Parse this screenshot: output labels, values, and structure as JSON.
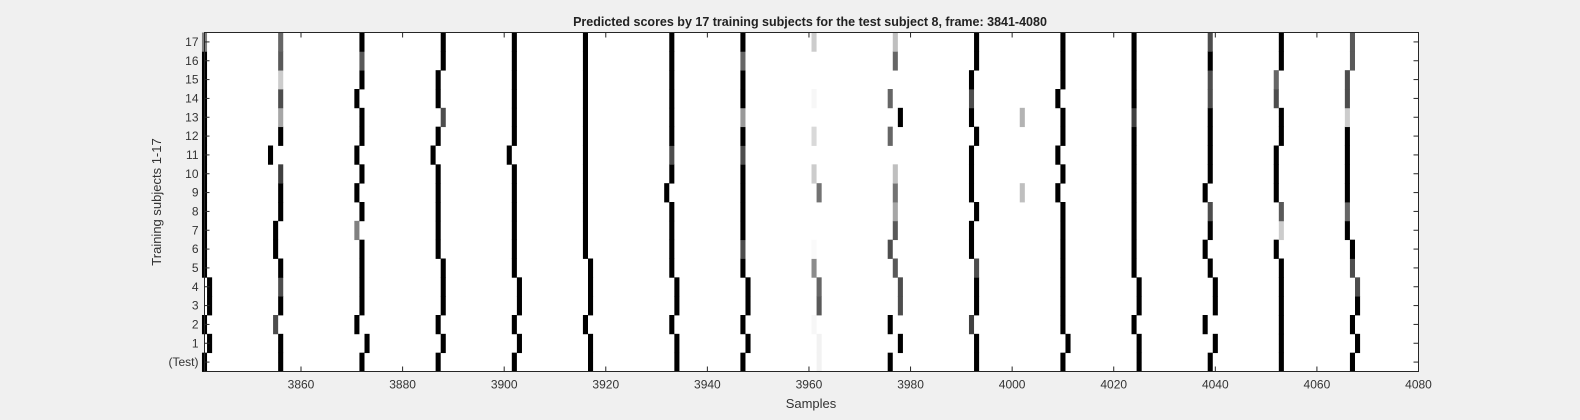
{
  "chart_data": {
    "type": "heatmap",
    "title": "Predicted scores by 17 training subjects for the test subject 8, frame: 3841-4080",
    "xlabel": "Samples",
    "ylabel": "Training subjects 1-17",
    "xlim": [
      3841,
      4080
    ],
    "x_ticks": [
      3860,
      3880,
      3900,
      3920,
      3940,
      3960,
      3980,
      4000,
      4020,
      4040,
      4060,
      4080
    ],
    "y_tick_labels": [
      "(Test)",
      "1",
      "2",
      "3",
      "4",
      "5",
      "6",
      "7",
      "8",
      "9",
      "10",
      "11",
      "12",
      "13",
      "14",
      "15",
      "16",
      "17"
    ],
    "background": "#ffffff",
    "colormap": "gray (white = 0 score, black = 1 score)",
    "series": [
      {
        "row": "(Test)",
        "peaks": [
          [
            3841,
            0
          ],
          [
            3856,
            0
          ],
          [
            3872,
            0
          ],
          [
            3887,
            0
          ],
          [
            3902,
            0
          ],
          [
            3917,
            0
          ],
          [
            3934,
            0
          ],
          [
            3947,
            0
          ],
          [
            3962,
            0.95
          ],
          [
            3976,
            0
          ],
          [
            3993,
            0
          ],
          [
            4010,
            0
          ],
          [
            4025,
            0
          ],
          [
            4039,
            0
          ],
          [
            4053,
            0
          ],
          [
            4067,
            0
          ]
        ]
      },
      {
        "row": "1",
        "peaks": [
          [
            3842,
            0
          ],
          [
            3856,
            0
          ],
          [
            3873,
            0
          ],
          [
            3888,
            0
          ],
          [
            3903,
            0
          ],
          [
            3917,
            0
          ],
          [
            3934,
            0
          ],
          [
            3948,
            0
          ],
          [
            3962,
            0.95
          ],
          [
            3978,
            0
          ],
          [
            3993,
            0
          ],
          [
            4011,
            0
          ],
          [
            4025,
            0
          ],
          [
            4040,
            0
          ],
          [
            4053,
            0
          ],
          [
            4068,
            0
          ]
        ]
      },
      {
        "row": "2",
        "peaks": [
          [
            3841,
            0
          ],
          [
            3855,
            0.3
          ],
          [
            3871,
            0
          ],
          [
            3887,
            0
          ],
          [
            3902,
            0
          ],
          [
            3916,
            0
          ],
          [
            3933,
            0
          ],
          [
            3947,
            0
          ],
          [
            3961,
            0.97
          ],
          [
            3976,
            0
          ],
          [
            3992,
            0.25
          ],
          [
            4010,
            0
          ],
          [
            4024,
            0
          ],
          [
            4038,
            0
          ],
          [
            4053,
            0
          ],
          [
            4067,
            0
          ]
        ]
      },
      {
        "row": "3",
        "peaks": [
          [
            3842,
            0
          ],
          [
            3856,
            0
          ],
          [
            3872,
            0
          ],
          [
            3888,
            0
          ],
          [
            3903,
            0
          ],
          [
            3917,
            0
          ],
          [
            3934,
            0
          ],
          [
            3948,
            0
          ],
          [
            3962,
            0.35
          ],
          [
            3978,
            0.3
          ],
          [
            3993,
            0
          ],
          [
            4010,
            0
          ],
          [
            4025,
            0
          ],
          [
            4040,
            0
          ],
          [
            4053,
            0
          ],
          [
            4068,
            0
          ]
        ]
      },
      {
        "row": "4",
        "peaks": [
          [
            3842,
            0
          ],
          [
            3856,
            0.3
          ],
          [
            3872,
            0
          ],
          [
            3888,
            0
          ],
          [
            3903,
            0
          ],
          [
            3917,
            0
          ],
          [
            3934,
            0
          ],
          [
            3948,
            0
          ],
          [
            3962,
            0.4
          ],
          [
            3978,
            0.3
          ],
          [
            3993,
            0
          ],
          [
            4010,
            0
          ],
          [
            4025,
            0
          ],
          [
            4040,
            0
          ],
          [
            4053,
            0
          ],
          [
            4068,
            0.3
          ]
        ]
      },
      {
        "row": "5",
        "peaks": [
          [
            3841,
            0
          ],
          [
            3856,
            0
          ],
          [
            3872,
            0
          ],
          [
            3888,
            0
          ],
          [
            3902,
            0
          ],
          [
            3917,
            0
          ],
          [
            3933,
            0
          ],
          [
            3947,
            0
          ],
          [
            3961,
            0.55
          ],
          [
            3977,
            0.35
          ],
          [
            3993,
            0.3
          ],
          [
            4010,
            0
          ],
          [
            4024,
            0
          ],
          [
            4039,
            0
          ],
          [
            4053,
            0
          ],
          [
            4067,
            0.3
          ]
        ]
      },
      {
        "row": "6",
        "peaks": [
          [
            3841,
            0
          ],
          [
            3855,
            0
          ],
          [
            3872,
            0
          ],
          [
            3887,
            0
          ],
          [
            3902,
            0
          ],
          [
            3916,
            0
          ],
          [
            3933,
            0
          ],
          [
            3947,
            0.3
          ],
          [
            3961,
            0.98
          ],
          [
            3976,
            0.3
          ],
          [
            3992,
            0
          ],
          [
            4010,
            0
          ],
          [
            4024,
            0
          ],
          [
            4038,
            0
          ],
          [
            4052,
            0
          ],
          [
            4067,
            0
          ]
        ]
      },
      {
        "row": "7",
        "peaks": [
          [
            3841,
            0
          ],
          [
            3855,
            0
          ],
          [
            3871,
            0.5
          ],
          [
            3887,
            0
          ],
          [
            3902,
            0
          ],
          [
            3916,
            0
          ],
          [
            3933,
            0
          ],
          [
            3947,
            0
          ],
          [
            3977,
            0.35
          ],
          [
            3992,
            0
          ],
          [
            4010,
            0
          ],
          [
            4024,
            0
          ],
          [
            4039,
            0
          ],
          [
            4053,
            0.8
          ],
          [
            4066,
            0
          ]
        ]
      },
      {
        "row": "8",
        "peaks": [
          [
            3841,
            0
          ],
          [
            3856,
            0
          ],
          [
            3872,
            0
          ],
          [
            3887,
            0
          ],
          [
            3902,
            0
          ],
          [
            3916,
            0
          ],
          [
            3933,
            0
          ],
          [
            3947,
            0
          ],
          [
            3977,
            0.65
          ],
          [
            3993,
            0
          ],
          [
            4010,
            0
          ],
          [
            4024,
            0
          ],
          [
            4039,
            0.3
          ],
          [
            4053,
            0.35
          ],
          [
            4066,
            0.4
          ]
        ]
      },
      {
        "row": "9",
        "peaks": [
          [
            3841,
            0
          ],
          [
            3856,
            0
          ],
          [
            3871,
            0
          ],
          [
            3887,
            0
          ],
          [
            3902,
            0
          ],
          [
            3916,
            0
          ],
          [
            3932,
            0
          ],
          [
            3947,
            0
          ],
          [
            3962,
            0.45
          ],
          [
            3977,
            0.45
          ],
          [
            3992,
            0
          ],
          [
            4002,
            0.75
          ],
          [
            4009,
            0
          ],
          [
            4024,
            0
          ],
          [
            4038,
            0
          ],
          [
            4052,
            0
          ],
          [
            4066,
            0
          ]
        ]
      },
      {
        "row": "10",
        "peaks": [
          [
            3841,
            0
          ],
          [
            3856,
            0.25
          ],
          [
            3872,
            0
          ],
          [
            3887,
            0
          ],
          [
            3902,
            0
          ],
          [
            3916,
            0
          ],
          [
            3933,
            0
          ],
          [
            3947,
            0
          ],
          [
            3961,
            0.8
          ],
          [
            3977,
            0.75
          ],
          [
            3992,
            0
          ],
          [
            4010,
            0
          ],
          [
            4024,
            0
          ],
          [
            4039,
            0
          ],
          [
            4052,
            0
          ],
          [
            4066,
            0
          ]
        ]
      },
      {
        "row": "11",
        "peaks": [
          [
            3841,
            0
          ],
          [
            3854,
            0
          ],
          [
            3871,
            0
          ],
          [
            3886,
            0
          ],
          [
            3901,
            0
          ],
          [
            3916,
            0
          ],
          [
            3933,
            0.3
          ],
          [
            3947,
            0.3
          ],
          [
            3992,
            0
          ],
          [
            4009,
            0
          ],
          [
            4024,
            0
          ],
          [
            4039,
            0
          ],
          [
            4052,
            0
          ],
          [
            4066,
            0
          ]
        ]
      },
      {
        "row": "12",
        "peaks": [
          [
            3841,
            0
          ],
          [
            3856,
            0
          ],
          [
            3872,
            0
          ],
          [
            3887,
            0
          ],
          [
            3902,
            0
          ],
          [
            3916,
            0
          ],
          [
            3933,
            0
          ],
          [
            3947,
            0
          ],
          [
            3961,
            0.85
          ],
          [
            3976,
            0.4
          ],
          [
            3993,
            0
          ],
          [
            4010,
            0
          ],
          [
            4024,
            0
          ],
          [
            4039,
            0
          ],
          [
            4053,
            0
          ],
          [
            4066,
            0
          ]
        ]
      },
      {
        "row": "13",
        "peaks": [
          [
            3841,
            0
          ],
          [
            3856,
            0.65
          ],
          [
            3872,
            0
          ],
          [
            3888,
            0.3
          ],
          [
            3902,
            0
          ],
          [
            3916,
            0
          ],
          [
            3933,
            0
          ],
          [
            3947,
            0.6
          ],
          [
            3978,
            0
          ],
          [
            3992,
            0
          ],
          [
            4002,
            0.7
          ],
          [
            4010,
            0
          ],
          [
            4024,
            0.25
          ],
          [
            4039,
            0
          ],
          [
            4053,
            0
          ],
          [
            4066,
            0.8
          ]
        ]
      },
      {
        "row": "14",
        "peaks": [
          [
            3841,
            0
          ],
          [
            3856,
            0.3
          ],
          [
            3871,
            0
          ],
          [
            3887,
            0
          ],
          [
            3902,
            0
          ],
          [
            3916,
            0
          ],
          [
            3933,
            0
          ],
          [
            3947,
            0
          ],
          [
            3961,
            0.97
          ],
          [
            3976,
            0.4
          ],
          [
            3992,
            0.3
          ],
          [
            4009,
            0
          ],
          [
            4024,
            0
          ],
          [
            4039,
            0.3
          ],
          [
            4052,
            0.3
          ],
          [
            4066,
            0.3
          ]
        ]
      },
      {
        "row": "15",
        "peaks": [
          [
            3841,
            0
          ],
          [
            3856,
            0.8
          ],
          [
            3872,
            0
          ],
          [
            3887,
            0
          ],
          [
            3902,
            0
          ],
          [
            3916,
            0
          ],
          [
            3933,
            0
          ],
          [
            3947,
            0
          ],
          [
            3992,
            0
          ],
          [
            4010,
            0
          ],
          [
            4024,
            0
          ],
          [
            4039,
            0.3
          ],
          [
            4052,
            0.4
          ],
          [
            4066,
            0.3
          ]
        ]
      },
      {
        "row": "16",
        "peaks": [
          [
            3841,
            0
          ],
          [
            3856,
            0.35
          ],
          [
            3872,
            0.35
          ],
          [
            3888,
            0
          ],
          [
            3902,
            0
          ],
          [
            3916,
            0
          ],
          [
            3933,
            0
          ],
          [
            3947,
            0.4
          ],
          [
            3977,
            0.4
          ],
          [
            3993,
            0
          ],
          [
            4010,
            0
          ],
          [
            4024,
            0
          ],
          [
            4039,
            0
          ],
          [
            4053,
            0
          ],
          [
            4067,
            0.35
          ]
        ]
      },
      {
        "row": "17",
        "peaks": [
          [
            3841,
            0.5
          ],
          [
            3856,
            0.4
          ],
          [
            3872,
            0
          ],
          [
            3888,
            0
          ],
          [
            3902,
            0
          ],
          [
            3916,
            0
          ],
          [
            3933,
            0
          ],
          [
            3947,
            0
          ],
          [
            3961,
            0.8
          ],
          [
            3977,
            0.75
          ],
          [
            3993,
            0
          ],
          [
            4010,
            0
          ],
          [
            4024,
            0
          ],
          [
            4039,
            0.3
          ],
          [
            4053,
            0
          ],
          [
            4067,
            0.35
          ]
        ]
      }
    ]
  }
}
